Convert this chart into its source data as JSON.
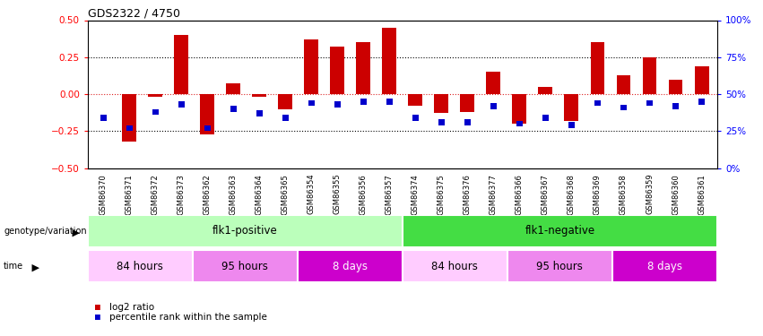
{
  "title": "GDS2322 / 4750",
  "samples": [
    "GSM86370",
    "GSM86371",
    "GSM86372",
    "GSM86373",
    "GSM86362",
    "GSM86363",
    "GSM86364",
    "GSM86365",
    "GSM86354",
    "GSM86355",
    "GSM86356",
    "GSM86357",
    "GSM86374",
    "GSM86375",
    "GSM86376",
    "GSM86377",
    "GSM86366",
    "GSM86367",
    "GSM86368",
    "GSM86369",
    "GSM86358",
    "GSM86359",
    "GSM86360",
    "GSM86361"
  ],
  "log2_ratio": [
    0.0,
    -0.32,
    -0.02,
    0.4,
    -0.27,
    0.07,
    -0.02,
    -0.1,
    0.37,
    0.32,
    0.35,
    0.45,
    -0.08,
    -0.13,
    -0.12,
    0.15,
    -0.2,
    0.05,
    -0.18,
    0.35,
    0.13,
    0.25,
    0.1,
    0.19
  ],
  "percentile_rank": [
    34,
    27,
    38,
    43,
    27,
    40,
    37,
    34,
    44,
    43,
    45,
    45,
    34,
    31,
    31,
    42,
    30,
    34,
    29,
    44,
    41,
    44,
    42,
    45
  ],
  "bar_color": "#cc0000",
  "pct_color": "#0000cc",
  "bar_width": 0.55,
  "pct_bar_width": 0.25,
  "ylim": [
    -0.5,
    0.5
  ],
  "yticks_left": [
    -0.5,
    -0.25,
    0.0,
    0.25,
    0.5
  ],
  "genotype_groups": [
    {
      "label": "flk1-positive",
      "start": 0,
      "end": 11,
      "color": "#bbffbb"
    },
    {
      "label": "flk1-negative",
      "start": 12,
      "end": 23,
      "color": "#44dd44"
    }
  ],
  "time_groups": [
    {
      "label": "84 hours",
      "start": 0,
      "end": 3,
      "color": "#ffccff"
    },
    {
      "label": "95 hours",
      "start": 4,
      "end": 7,
      "color": "#ee88ee"
    },
    {
      "label": "8 days",
      "start": 8,
      "end": 11,
      "color": "#cc00cc"
    },
    {
      "label": "84 hours",
      "start": 12,
      "end": 15,
      "color": "#ffccff"
    },
    {
      "label": "95 hours",
      "start": 16,
      "end": 19,
      "color": "#ee88ee"
    },
    {
      "label": "8 days",
      "start": 20,
      "end": 23,
      "color": "#cc00cc"
    }
  ],
  "legend_items": [
    {
      "label": "log2 ratio",
      "color": "#cc0000"
    },
    {
      "label": "percentile rank within the sample",
      "color": "#0000cc"
    }
  ]
}
